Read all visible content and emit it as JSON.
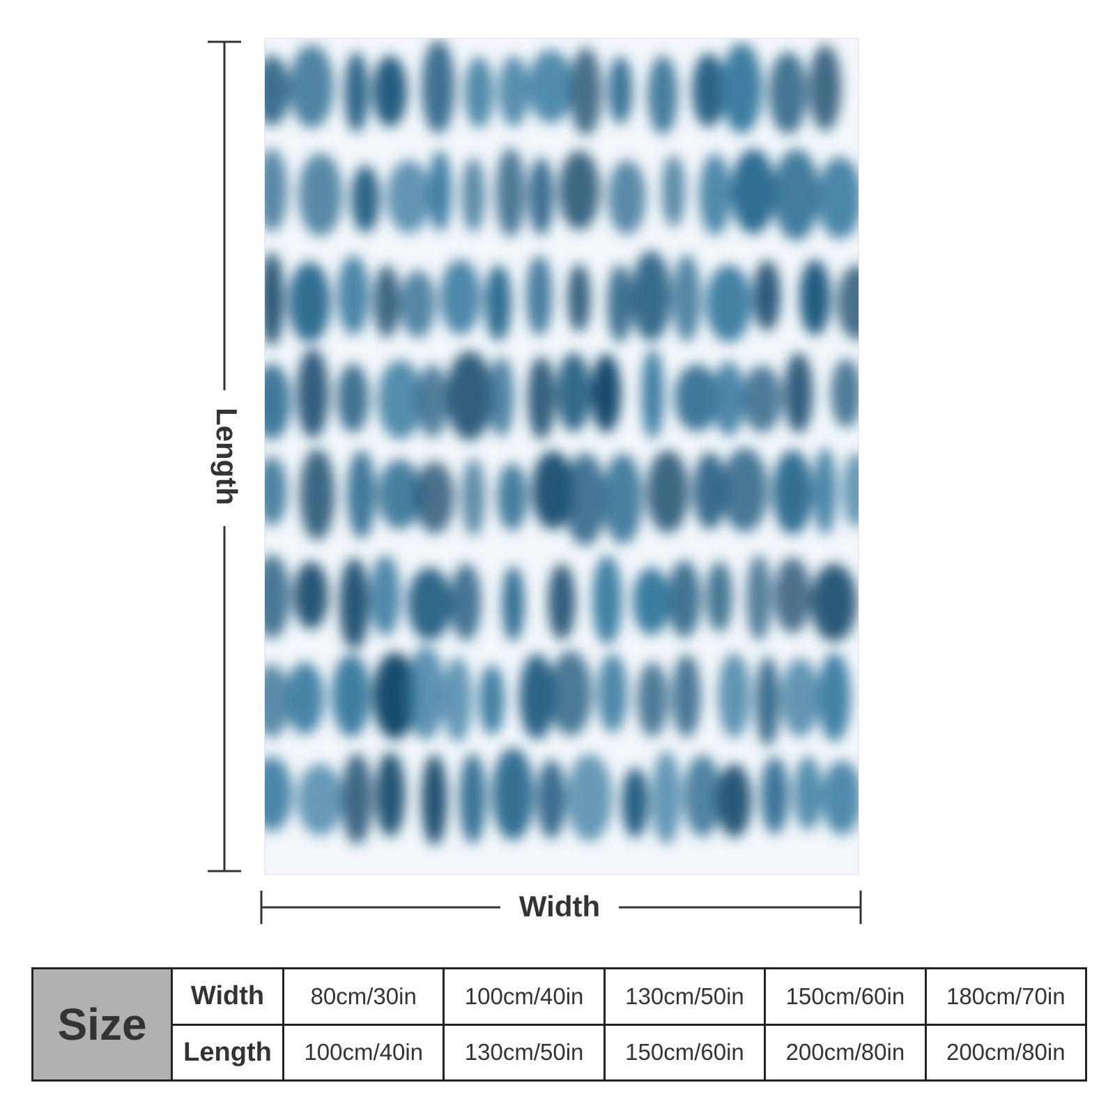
{
  "diagram": {
    "length_label": "Length",
    "width_label": "Width"
  },
  "size_table": {
    "title": "Size",
    "rows": [
      {
        "name": "Width",
        "values": [
          "80cm/30in",
          "100cm/40in",
          "130cm/50in",
          "150cm/60in",
          "180cm/70in"
        ]
      },
      {
        "name": "Length",
        "values": [
          "100cm/40in",
          "130cm/50in",
          "150cm/60in",
          "200cm/80in",
          "200cm/80in"
        ]
      }
    ]
  }
}
